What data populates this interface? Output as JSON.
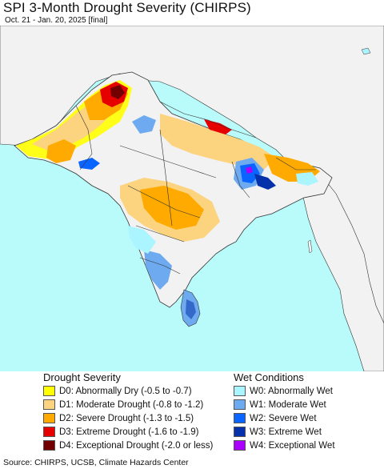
{
  "header": {
    "title": "SPI 3-Month Drought Severity (CHIRPS)",
    "subtitle": "Oct. 21 - Jan. 20, 2025 [final]"
  },
  "map": {
    "ocean_color": "#b9fbfb",
    "land_nodata_color": "#f2f2f2",
    "neighbor_land_color": "#f2f2f2",
    "boundary_color": "#333333"
  },
  "legend": {
    "drought_heading": "Drought Severity",
    "drought_items": [
      {
        "code": "D0",
        "label": "D0: Abnormally Dry (-0.5 to -0.7)",
        "color": "#ffff00"
      },
      {
        "code": "D1",
        "label": "D1: Moderate Drought (-0.8 to -1.2)",
        "color": "#fcd37f"
      },
      {
        "code": "D2",
        "label": "D2: Severe Drought (-1.3 to -1.5)",
        "color": "#ffaa00"
      },
      {
        "code": "D3",
        "label": "D3: Extreme Drought (-1.6 to -1.9)",
        "color": "#e60000"
      },
      {
        "code": "D4",
        "label": "D4: Exceptional Drought (-2.0 or less)",
        "color": "#730000"
      }
    ],
    "wet_heading": "Wet Conditions",
    "wet_items": [
      {
        "code": "W0",
        "label": "W0: Abnormally Wet",
        "color": "#aaf5ff"
      },
      {
        "code": "W1",
        "label": "W1: Moderate Wet",
        "color": "#6eaaf0"
      },
      {
        "code": "W2",
        "label": "W2: Severe Wet",
        "color": "#0a64ff"
      },
      {
        "code": "W3",
        "label": "W3: Extreme Wet",
        "color": "#0532aa"
      },
      {
        "code": "W4",
        "label": "W4: Exceptional Wet",
        "color": "#aa00ff"
      }
    ]
  },
  "footer": {
    "source": "Source: CHIRPS, UCSB, Climate Hazards Center"
  }
}
